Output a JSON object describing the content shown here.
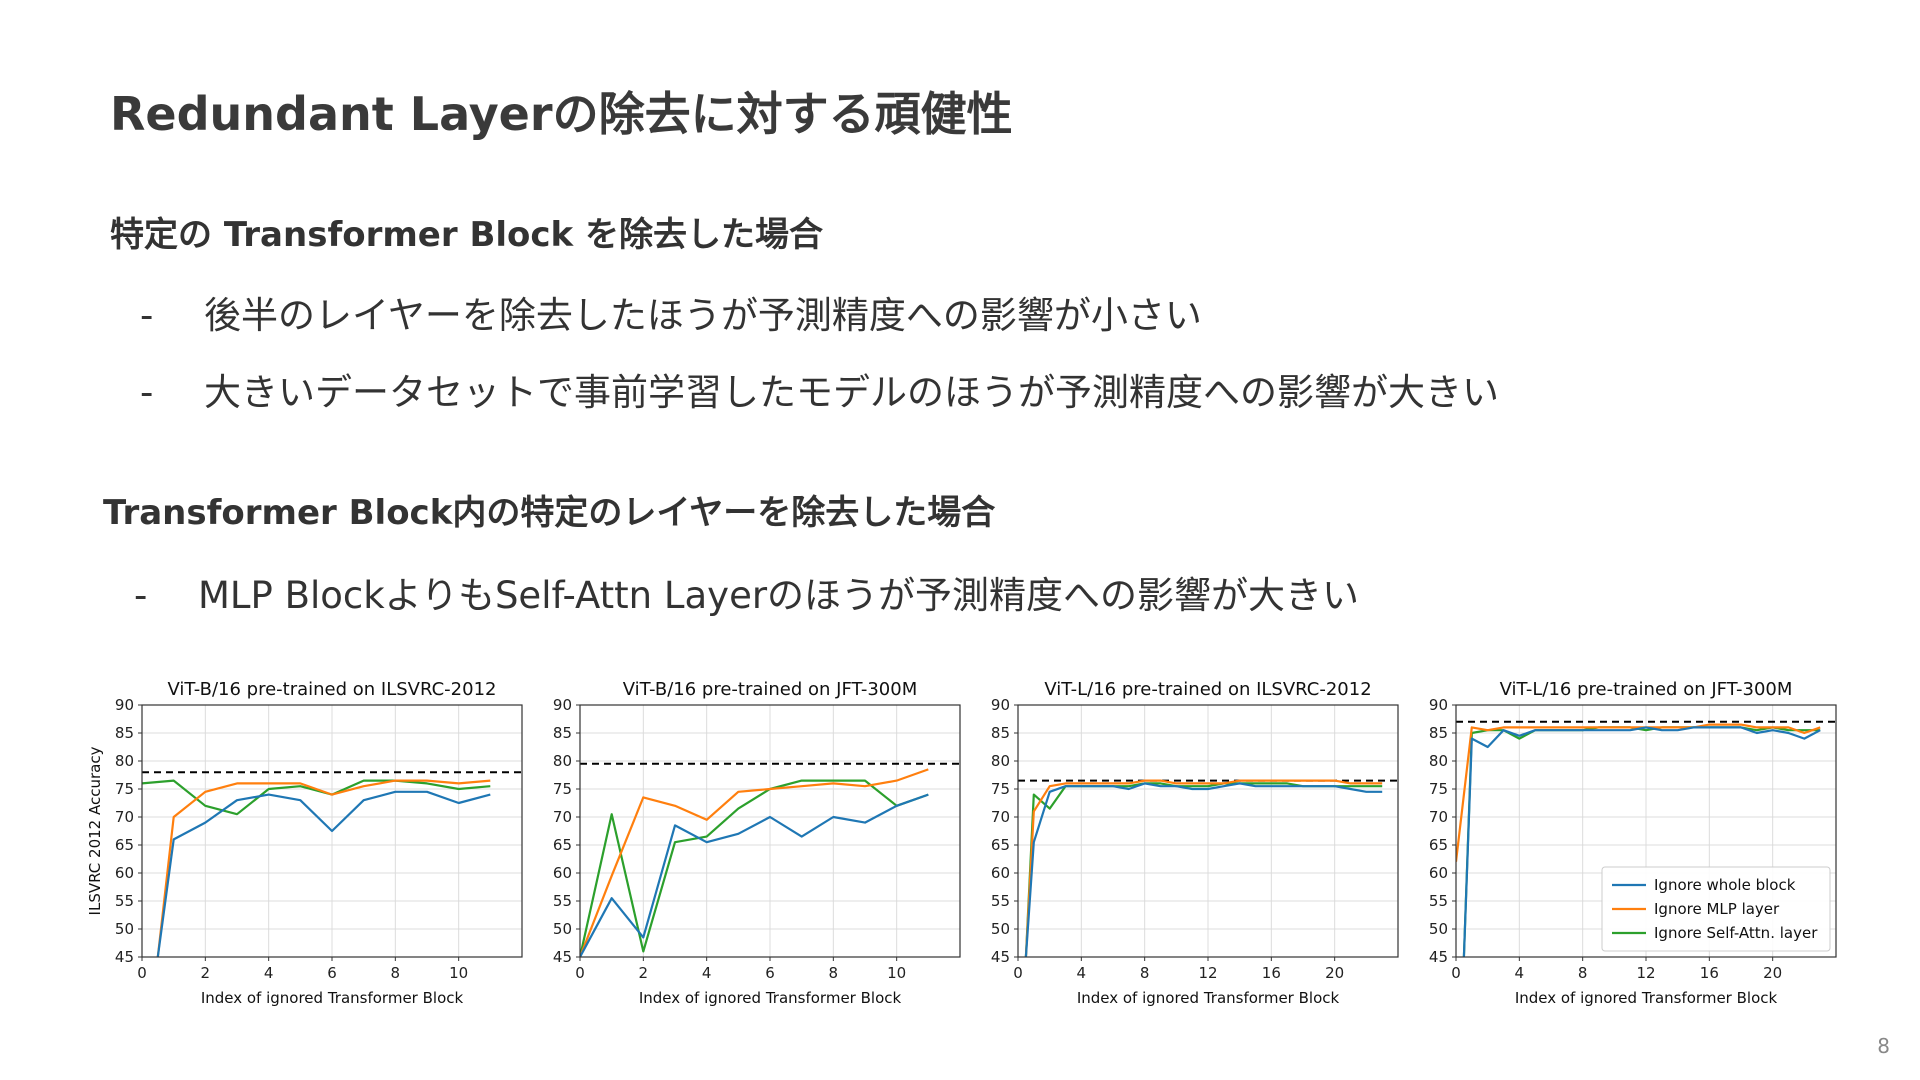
{
  "slide": {
    "title": "Redundant Layerの除去に対する頑健性",
    "section1": {
      "heading": "特定の Transformer Block を除去した場合",
      "bullets": [
        "後半のレイヤーを除去したほうが予測精度への影響が小さい",
        "大きいデータセットで事前学習したモデルのほうが予測精度への影響が大きい"
      ]
    },
    "section2": {
      "heading": "Transformer Block内の特定のレイヤーを除去した場合",
      "bullets": [
        "MLP BlockよりもSelf-Attn Layerのほうが予測精度への影響が大きい"
      ]
    },
    "bullet_marker": "-",
    "page_number": "8"
  },
  "colors": {
    "whole_block": "#1f77b4",
    "mlp": "#ff7f0e",
    "self_attn": "#2ca02c",
    "baseline": "#000000"
  },
  "chart_data": [
    {
      "type": "line",
      "title": "ViT-B/16 pre-trained on ILSVRC-2012",
      "xlabel": "Index of ignored Transformer Block",
      "ylabel": "ILSVRC 2012 Accuracy",
      "xlim": [
        0,
        12
      ],
      "ylim": [
        45,
        90
      ],
      "xticks": [
        0,
        2,
        4,
        6,
        8,
        10
      ],
      "yticks": [
        45,
        50,
        55,
        60,
        65,
        70,
        75,
        80,
        85,
        90
      ],
      "grid": true,
      "baseline": 78,
      "series": [
        {
          "key": "whole_block",
          "x": [
            0.5,
            1,
            2,
            3,
            4,
            5,
            6,
            7,
            8,
            9,
            10,
            11
          ],
          "y": [
            45,
            66,
            69,
            73,
            74,
            73,
            67.5,
            73,
            74.5,
            74.5,
            72.5,
            74
          ]
        },
        {
          "key": "mlp",
          "x": [
            0.5,
            1,
            2,
            3,
            4,
            5,
            6,
            7,
            8,
            9,
            10,
            11
          ],
          "y": [
            45,
            70,
            74.5,
            76,
            76,
            76,
            74,
            75.5,
            76.5,
            76.5,
            76,
            76.5
          ]
        },
        {
          "key": "self_attn",
          "x": [
            0,
            1,
            2,
            3,
            4,
            5,
            6,
            7,
            8,
            9,
            10,
            11
          ],
          "y": [
            76,
            76.5,
            72,
            70.5,
            75,
            75.5,
            74,
            76.5,
            76.5,
            76,
            75,
            75.5
          ]
        }
      ]
    },
    {
      "type": "line",
      "title": "ViT-B/16 pre-trained on JFT-300M",
      "xlabel": "Index of ignored Transformer Block",
      "ylabel": "",
      "xlim": [
        0,
        12
      ],
      "ylim": [
        45,
        90
      ],
      "xticks": [
        0,
        2,
        4,
        6,
        8,
        10
      ],
      "yticks": [
        45,
        50,
        55,
        60,
        65,
        70,
        75,
        80,
        85,
        90
      ],
      "grid": true,
      "baseline": 79.5,
      "series": [
        {
          "key": "whole_block",
          "x": [
            0,
            1,
            2,
            3,
            4,
            5,
            6,
            7,
            8,
            9,
            10,
            11
          ],
          "y": [
            45,
            55.5,
            48.5,
            68.5,
            65.5,
            67,
            70,
            66.5,
            70,
            69,
            72,
            74
          ]
        },
        {
          "key": "mlp",
          "x": [
            0,
            1,
            2,
            3,
            4,
            5,
            6,
            7,
            8,
            9,
            10,
            11
          ],
          "y": [
            45,
            59.5,
            73.5,
            72,
            69.5,
            74.5,
            75,
            75.5,
            76,
            75.5,
            76.5,
            78.5
          ]
        },
        {
          "key": "self_attn",
          "x": [
            0,
            1,
            2,
            3,
            4,
            5,
            6,
            7,
            8,
            9,
            10,
            11
          ],
          "y": [
            45,
            70.5,
            46,
            65.5,
            66.5,
            71.5,
            75,
            76.5,
            76.5,
            76.5,
            72,
            74
          ]
        }
      ]
    },
    {
      "type": "line",
      "title": "ViT-L/16 pre-trained on ILSVRC-2012",
      "xlabel": "Index of ignored Transformer Block",
      "ylabel": "",
      "xlim": [
        0,
        24
      ],
      "ylim": [
        45,
        90
      ],
      "xticks": [
        0,
        4,
        8,
        12,
        16,
        20
      ],
      "yticks": [
        45,
        50,
        55,
        60,
        65,
        70,
        75,
        80,
        85,
        90
      ],
      "grid": true,
      "baseline": 76.5,
      "series": [
        {
          "key": "whole_block",
          "x": [
            0.5,
            1,
            2,
            3,
            4,
            5,
            6,
            7,
            8,
            9,
            10,
            11,
            12,
            13,
            14,
            15,
            16,
            17,
            18,
            19,
            20,
            21,
            22,
            23
          ],
          "y": [
            45,
            65.5,
            74.5,
            75.5,
            75.5,
            75.5,
            75.5,
            75,
            76,
            75.5,
            75.5,
            75,
            75,
            75.5,
            76,
            75.5,
            75.5,
            75.5,
            75.5,
            75.5,
            75.5,
            75,
            74.5,
            74.5
          ]
        },
        {
          "key": "mlp",
          "x": [
            0.5,
            1,
            2,
            3,
            4,
            5,
            6,
            7,
            8,
            9,
            10,
            11,
            12,
            13,
            14,
            15,
            16,
            17,
            18,
            19,
            20,
            21,
            22,
            23
          ],
          "y": [
            45,
            71,
            75.5,
            76,
            76,
            76,
            76,
            76,
            76.5,
            76.5,
            76,
            76,
            76,
            76,
            76.5,
            76.5,
            76.5,
            76.5,
            76.5,
            76.5,
            76.5,
            76,
            76,
            76
          ]
        },
        {
          "key": "self_attn",
          "x": [
            0.5,
            1,
            2,
            3,
            4,
            5,
            6,
            7,
            8,
            9,
            10,
            11,
            12,
            13,
            14,
            15,
            16,
            17,
            18,
            19,
            20,
            21,
            22,
            23
          ],
          "y": [
            45,
            74,
            71.5,
            75.5,
            75.5,
            75.5,
            75.5,
            75.5,
            76,
            76,
            75.5,
            75.5,
            75.5,
            76,
            76,
            76,
            76,
            76,
            75.5,
            75.5,
            75.5,
            75.5,
            75.5,
            75.5
          ]
        }
      ]
    },
    {
      "type": "line",
      "title": "ViT-L/16 pre-trained on JFT-300M",
      "xlabel": "Index of ignored Transformer Block",
      "ylabel": "",
      "xlim": [
        0,
        24
      ],
      "ylim": [
        45,
        90
      ],
      "xticks": [
        0,
        4,
        8,
        12,
        16,
        20
      ],
      "yticks": [
        45,
        50,
        55,
        60,
        65,
        70,
        75,
        80,
        85,
        90
      ],
      "grid": true,
      "baseline": 87,
      "legend": {
        "placement": "lower right",
        "entries": [
          {
            "key": "whole_block",
            "label": "Ignore whole block"
          },
          {
            "key": "mlp",
            "label": "Ignore MLP layer"
          },
          {
            "key": "self_attn",
            "label": "Ignore Self-Attn. layer"
          }
        ]
      },
      "series": [
        {
          "key": "whole_block",
          "x": [
            0.5,
            1,
            2,
            3,
            4,
            5,
            6,
            7,
            8,
            9,
            10,
            11,
            12,
            13,
            14,
            15,
            16,
            17,
            18,
            19,
            20,
            21,
            22,
            23
          ],
          "y": [
            45,
            84,
            82.5,
            85.5,
            84.5,
            85.5,
            85.5,
            85.5,
            85.5,
            85.5,
            85.5,
            85.5,
            86,
            85.5,
            85.5,
            86,
            86,
            86,
            86,
            85,
            85.5,
            85,
            84,
            85.5
          ]
        },
        {
          "key": "mlp",
          "x": [
            0,
            1,
            2,
            3,
            4,
            5,
            6,
            7,
            8,
            9,
            10,
            11,
            12,
            13,
            14,
            15,
            16,
            17,
            18,
            19,
            20,
            21,
            22,
            23
          ],
          "y": [
            62,
            86,
            85.5,
            86,
            86,
            86,
            86,
            86,
            86,
            86,
            86,
            86,
            86,
            86,
            86,
            86,
            86.5,
            86.5,
            86.5,
            86,
            86,
            86,
            85,
            86
          ]
        },
        {
          "key": "self_attn",
          "x": [
            0.5,
            1,
            2,
            3,
            4,
            5,
            6,
            7,
            8,
            9,
            10,
            11,
            12,
            13,
            14,
            15,
            16,
            17,
            18,
            19,
            20,
            21,
            22,
            23
          ],
          "y": [
            45,
            85,
            85.5,
            85.5,
            84,
            85.5,
            85.5,
            85.5,
            85.5,
            86,
            86,
            86,
            85.5,
            86,
            86,
            86,
            86,
            86,
            86,
            85.5,
            86,
            85.5,
            85.5,
            85.5
          ]
        }
      ]
    }
  ]
}
